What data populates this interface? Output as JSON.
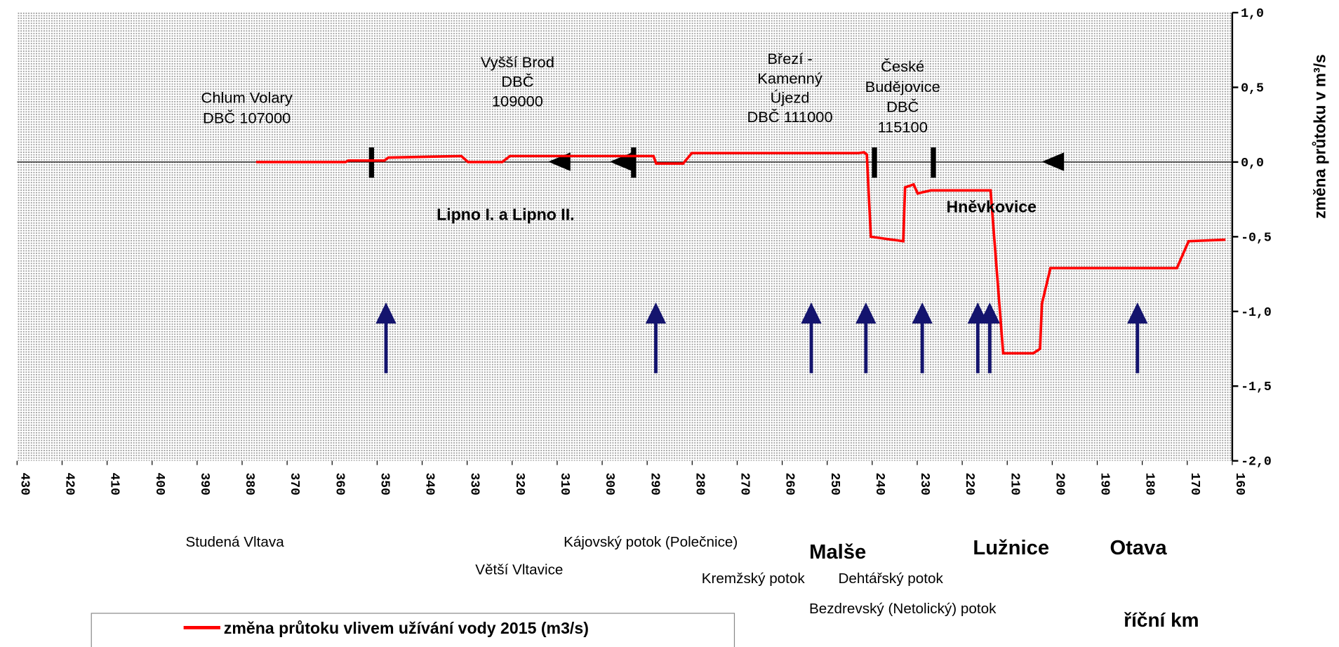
{
  "chart_data": {
    "type": "line",
    "y_axis_label": "změna průtoku v m³/s",
    "x_axis_label": "říční km",
    "x_reversed": true,
    "xlim": [
      430,
      160
    ],
    "xticks": [
      430,
      420,
      410,
      400,
      390,
      380,
      370,
      360,
      350,
      340,
      330,
      320,
      310,
      300,
      290,
      280,
      270,
      260,
      250,
      240,
      230,
      220,
      210,
      200,
      190,
      180,
      170,
      160
    ],
    "ylim": [
      -2,
      1
    ],
    "yticks": [
      {
        "value": 1,
        "label": "1,0"
      },
      {
        "value": 0.5,
        "label": "0,5"
      },
      {
        "value": 0,
        "label": "0,0"
      },
      {
        "value": -0.5,
        "label": "-0,5"
      },
      {
        "value": -1,
        "label": "-1,0"
      },
      {
        "value": -1.5,
        "label": "-1,5"
      },
      {
        "value": -2,
        "label": "-2,0"
      }
    ],
    "y_axis_side": "right",
    "series": [
      {
        "name": "změna průtoku vlivem užívání vody 2015 (m3/s)",
        "color": "#ff0000",
        "x": [
          376.9,
          357,
          356.4,
          348.4,
          347.5,
          331.3,
          329.8,
          322.2,
          320.5,
          288.6,
          288,
          282,
          280.1,
          243.1,
          241.8,
          241.2,
          240.3,
          233.1,
          232.7,
          230.8,
          229.9,
          227,
          213.7,
          210.9,
          204.2,
          202.7,
          202.3,
          200.4,
          172.3,
          169.7,
          161.5
        ],
        "values": [
          0,
          0,
          0.01,
          0.01,
          0.03,
          0.04,
          0,
          0,
          0.04,
          0.04,
          -0.01,
          -0.01,
          0.06,
          0.06,
          0.065,
          0.05,
          -0.5,
          -0.53,
          -0.17,
          -0.15,
          -0.21,
          -0.19,
          -0.19,
          -1.28,
          -1.28,
          -1.25,
          -0.95,
          -0.71,
          -0.71,
          -0.53,
          -0.52
        ]
      }
    ],
    "annotations": [
      {
        "lines": [
          "Chlum Volary",
          "DBČ 107000"
        ]
      },
      {
        "lines": [
          "Vyšší Brod",
          "DBČ",
          "109000"
        ]
      },
      {
        "lines": [
          "Březí -",
          "Kamenný",
          "Újezd",
          "DBČ 111000"
        ]
      },
      {
        "lines": [
          "České",
          "Budějovice",
          "DBČ",
          "115100"
        ]
      },
      {
        "lines": [
          "Lipno I. a Lipno II."
        ]
      },
      {
        "lines": [
          "Hněvkovice"
        ]
      },
      {
        "lines": [
          "Studená Vltava"
        ]
      },
      {
        "lines": [
          "Kájovský potok (Polečnice)"
        ]
      },
      {
        "lines": [
          "Malše"
        ]
      },
      {
        "lines": [
          "Větší  Vltavice"
        ]
      },
      {
        "lines": [
          "Lužnice"
        ]
      },
      {
        "lines": [
          "Otava"
        ]
      },
      {
        "lines": [
          "Kremžský potok"
        ]
      },
      {
        "lines": [
          "Dehtářský potok"
        ]
      },
      {
        "lines": [
          "Bezdrevský (Netolický) potok"
        ]
      }
    ]
  }
}
